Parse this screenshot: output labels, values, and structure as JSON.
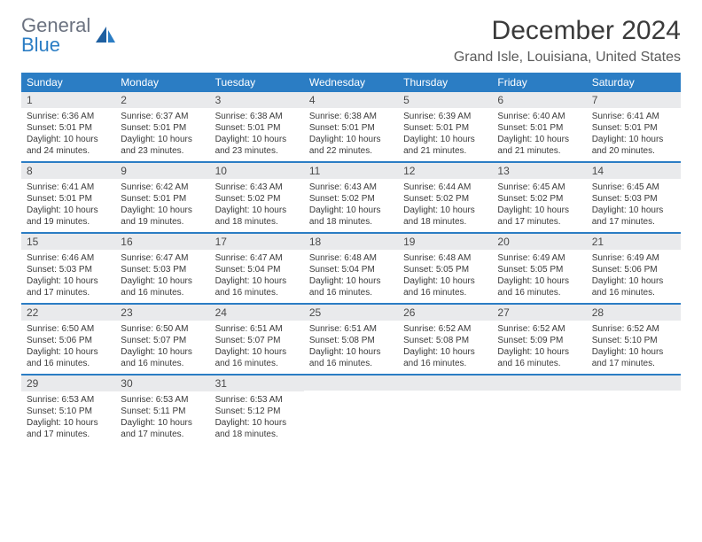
{
  "logo": {
    "general": "General",
    "blue": "Blue"
  },
  "title": "December 2024",
  "location": "Grand Isle, Louisiana, United States",
  "colors": {
    "header_bg": "#2b7dc4",
    "header_text": "#ffffff",
    "daynum_bg": "#e9eaec",
    "text": "#3a3a3a",
    "rule": "#2b7dc4"
  },
  "daynames": [
    "Sunday",
    "Monday",
    "Tuesday",
    "Wednesday",
    "Thursday",
    "Friday",
    "Saturday"
  ],
  "weeks": [
    [
      {
        "n": "1",
        "sr": "6:36 AM",
        "ss": "5:01 PM",
        "dl": "10 hours and 24 minutes."
      },
      {
        "n": "2",
        "sr": "6:37 AM",
        "ss": "5:01 PM",
        "dl": "10 hours and 23 minutes."
      },
      {
        "n": "3",
        "sr": "6:38 AM",
        "ss": "5:01 PM",
        "dl": "10 hours and 23 minutes."
      },
      {
        "n": "4",
        "sr": "6:38 AM",
        "ss": "5:01 PM",
        "dl": "10 hours and 22 minutes."
      },
      {
        "n": "5",
        "sr": "6:39 AM",
        "ss": "5:01 PM",
        "dl": "10 hours and 21 minutes."
      },
      {
        "n": "6",
        "sr": "6:40 AM",
        "ss": "5:01 PM",
        "dl": "10 hours and 21 minutes."
      },
      {
        "n": "7",
        "sr": "6:41 AM",
        "ss": "5:01 PM",
        "dl": "10 hours and 20 minutes."
      }
    ],
    [
      {
        "n": "8",
        "sr": "6:41 AM",
        "ss": "5:01 PM",
        "dl": "10 hours and 19 minutes."
      },
      {
        "n": "9",
        "sr": "6:42 AM",
        "ss": "5:01 PM",
        "dl": "10 hours and 19 minutes."
      },
      {
        "n": "10",
        "sr": "6:43 AM",
        "ss": "5:02 PM",
        "dl": "10 hours and 18 minutes."
      },
      {
        "n": "11",
        "sr": "6:43 AM",
        "ss": "5:02 PM",
        "dl": "10 hours and 18 minutes."
      },
      {
        "n": "12",
        "sr": "6:44 AM",
        "ss": "5:02 PM",
        "dl": "10 hours and 18 minutes."
      },
      {
        "n": "13",
        "sr": "6:45 AM",
        "ss": "5:02 PM",
        "dl": "10 hours and 17 minutes."
      },
      {
        "n": "14",
        "sr": "6:45 AM",
        "ss": "5:03 PM",
        "dl": "10 hours and 17 minutes."
      }
    ],
    [
      {
        "n": "15",
        "sr": "6:46 AM",
        "ss": "5:03 PM",
        "dl": "10 hours and 17 minutes."
      },
      {
        "n": "16",
        "sr": "6:47 AM",
        "ss": "5:03 PM",
        "dl": "10 hours and 16 minutes."
      },
      {
        "n": "17",
        "sr": "6:47 AM",
        "ss": "5:04 PM",
        "dl": "10 hours and 16 minutes."
      },
      {
        "n": "18",
        "sr": "6:48 AM",
        "ss": "5:04 PM",
        "dl": "10 hours and 16 minutes."
      },
      {
        "n": "19",
        "sr": "6:48 AM",
        "ss": "5:05 PM",
        "dl": "10 hours and 16 minutes."
      },
      {
        "n": "20",
        "sr": "6:49 AM",
        "ss": "5:05 PM",
        "dl": "10 hours and 16 minutes."
      },
      {
        "n": "21",
        "sr": "6:49 AM",
        "ss": "5:06 PM",
        "dl": "10 hours and 16 minutes."
      }
    ],
    [
      {
        "n": "22",
        "sr": "6:50 AM",
        "ss": "5:06 PM",
        "dl": "10 hours and 16 minutes."
      },
      {
        "n": "23",
        "sr": "6:50 AM",
        "ss": "5:07 PM",
        "dl": "10 hours and 16 minutes."
      },
      {
        "n": "24",
        "sr": "6:51 AM",
        "ss": "5:07 PM",
        "dl": "10 hours and 16 minutes."
      },
      {
        "n": "25",
        "sr": "6:51 AM",
        "ss": "5:08 PM",
        "dl": "10 hours and 16 minutes."
      },
      {
        "n": "26",
        "sr": "6:52 AM",
        "ss": "5:08 PM",
        "dl": "10 hours and 16 minutes."
      },
      {
        "n": "27",
        "sr": "6:52 AM",
        "ss": "5:09 PM",
        "dl": "10 hours and 16 minutes."
      },
      {
        "n": "28",
        "sr": "6:52 AM",
        "ss": "5:10 PM",
        "dl": "10 hours and 17 minutes."
      }
    ],
    [
      {
        "n": "29",
        "sr": "6:53 AM",
        "ss": "5:10 PM",
        "dl": "10 hours and 17 minutes."
      },
      {
        "n": "30",
        "sr": "6:53 AM",
        "ss": "5:11 PM",
        "dl": "10 hours and 17 minutes."
      },
      {
        "n": "31",
        "sr": "6:53 AM",
        "ss": "5:12 PM",
        "dl": "10 hours and 18 minutes."
      },
      null,
      null,
      null,
      null
    ]
  ],
  "labels": {
    "sunrise": "Sunrise: ",
    "sunset": "Sunset: ",
    "daylight": "Daylight: "
  }
}
